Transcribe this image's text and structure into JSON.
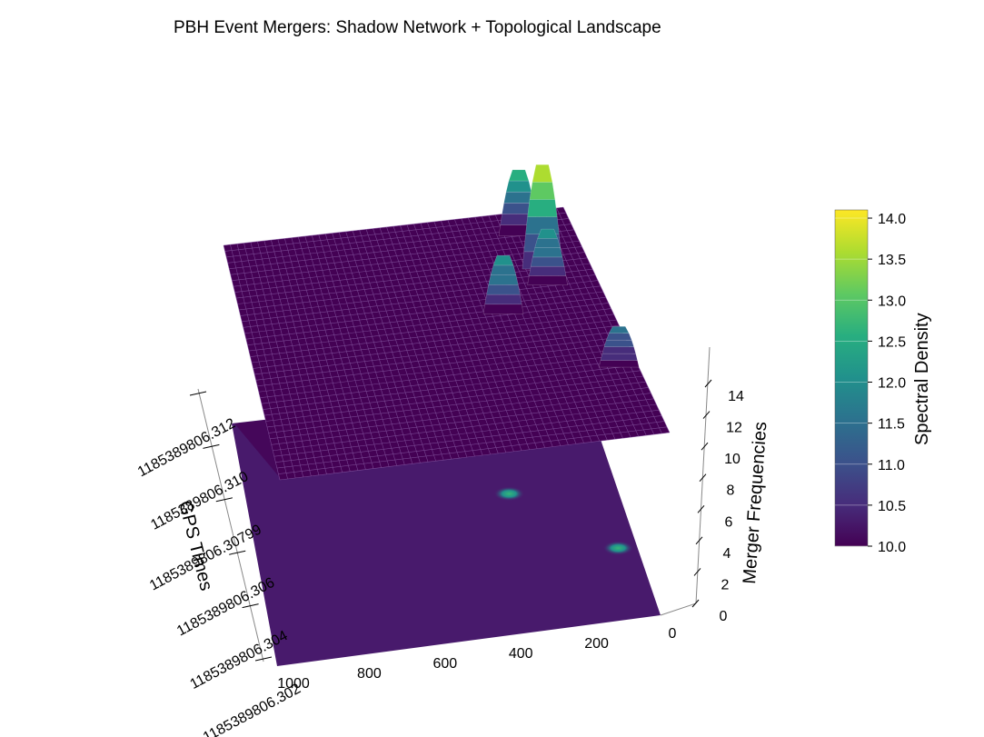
{
  "chart_data": {
    "type": "surface",
    "title": "PBH Event Mergers: Shadow Network + Topological Landscape",
    "xlabel": "",
    "ylabel": "GPS Times",
    "zlabel": "Merger Frequencies",
    "colorbar_label": "Spectral Density",
    "colormap": "viridis",
    "x_ticks": [
      "1000",
      "800",
      "600",
      "400",
      "200",
      "0"
    ],
    "y_ticks": [
      "1185389806.302",
      "1185389806.304",
      "1185389806.306",
      "1185389806.30799",
      "1185389806.310",
      "1185389806.312"
    ],
    "z_ticks": [
      "0",
      "2",
      "4",
      "6",
      "8",
      "10",
      "12",
      "14"
    ],
    "colorbar_ticks": [
      "10.0",
      "10.5",
      "11.0",
      "11.5",
      "12.0",
      "12.5",
      "13.0",
      "13.5",
      "14.0"
    ],
    "xlim": [
      0,
      1000
    ],
    "ylim": [
      1185389806.302,
      1185389806.312
    ],
    "zlim": [
      0,
      14
    ],
    "color_range": [
      10.0,
      14.1
    ],
    "surface_base_level": 10.0,
    "peaks": [
      {
        "x": 160,
        "y": 1185389806.311,
        "peak_value": 12.6
      },
      {
        "x": 135,
        "y": 1185389806.3095,
        "peak_value": 14.1
      },
      {
        "x": 140,
        "y": 1185389806.3088,
        "peak_value": 12.2
      },
      {
        "x": 290,
        "y": 1185389806.3078,
        "peak_value": 12.3
      },
      {
        "x": 50,
        "y": 1185389806.305,
        "peak_value": 11.6
      }
    ],
    "shadow_projection_hotspots": [
      {
        "x": 160,
        "y": 1185389806.311,
        "value": 14.0
      },
      {
        "x": 290,
        "y": 1185389806.3078,
        "value": 11.8
      },
      {
        "x": 50,
        "y": 1185389806.305,
        "value": 11.5
      }
    ]
  }
}
